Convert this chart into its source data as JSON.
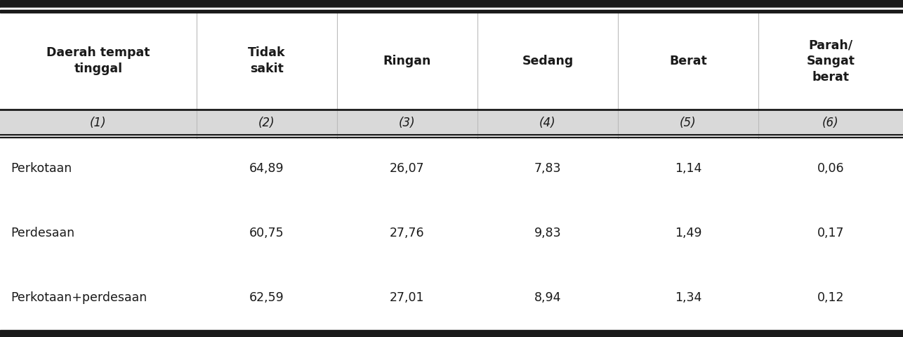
{
  "col_headers": [
    "Daerah tempat\ntinggal",
    "Tidak\nsakit",
    "Ringan",
    "Sedang",
    "Berat",
    "Parah/\nSangat\nberat"
  ],
  "col_numbers": [
    "(1)",
    "(2)",
    "(3)",
    "(4)",
    "(5)",
    "(6)"
  ],
  "rows": [
    [
      "Perkotaan",
      "64,89",
      "26,07",
      "7,83",
      "1,14",
      "0,06"
    ],
    [
      "Perdesaan",
      "60,75",
      "27,76",
      "9,83",
      "1,49",
      "0,17"
    ],
    [
      "Perkotaan+perdesaan",
      "62,59",
      "27,01",
      "8,94",
      "1,34",
      "0,12"
    ]
  ],
  "header_bg": "#d9d9d9",
  "white_bg": "#ffffff",
  "border_color": "#1a1a1a",
  "text_color": "#1a1a1a",
  "header_fontsize": 12.5,
  "data_fontsize": 12.5,
  "number_fontsize": 12
}
